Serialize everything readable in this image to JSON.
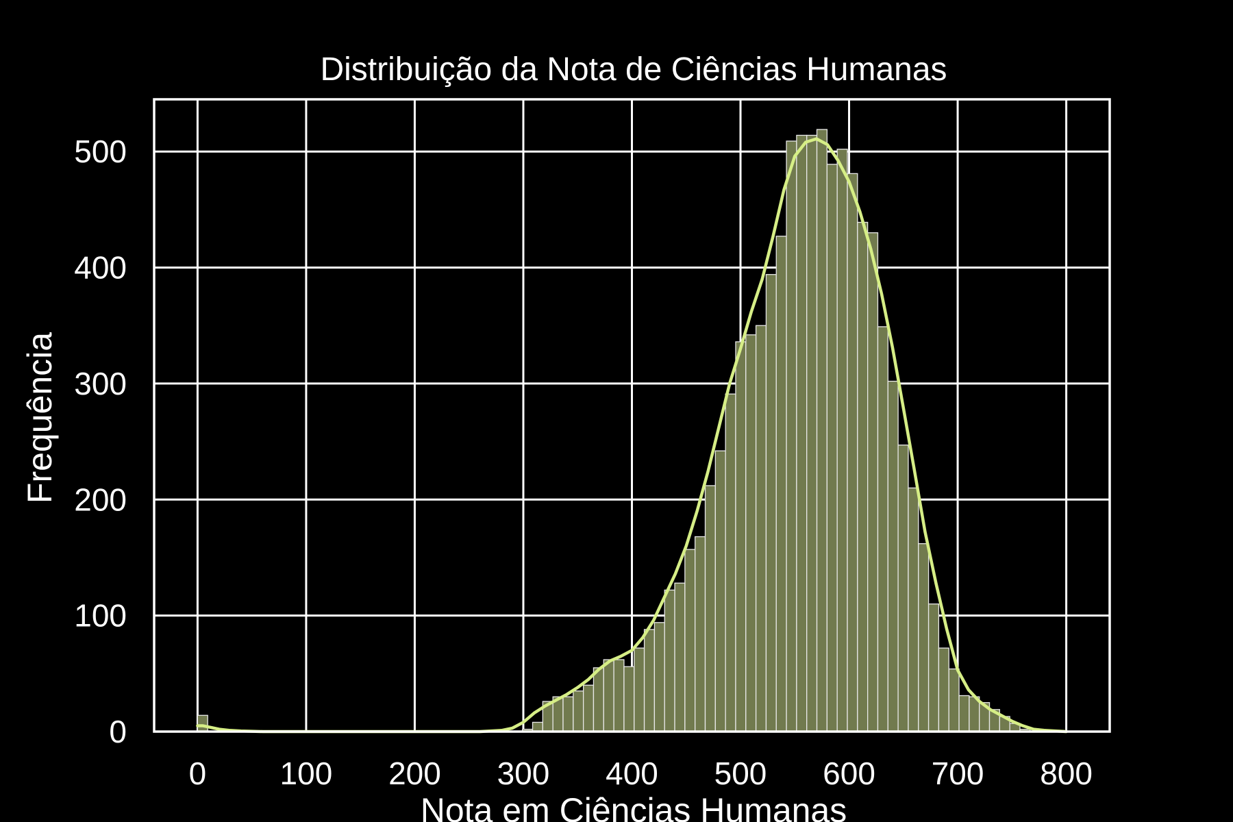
{
  "chart_data": {
    "type": "bar",
    "title": "Distribuição da Nota de Ciências Humanas",
    "xlabel": "Nota em Ciências Humanas",
    "ylabel": "Frequência",
    "xlim": [
      -40,
      840
    ],
    "ylim": [
      0,
      545
    ],
    "xticks": [
      "0",
      "100",
      "200",
      "300",
      "400",
      "500",
      "600",
      "700",
      "800"
    ],
    "yticks": [
      "0",
      "100",
      "200",
      "300",
      "400",
      "500"
    ],
    "grid": true,
    "bin_width": 9.35,
    "series": [
      {
        "bin_starts": [
          0,
          299.2,
          308.55,
          317.9,
          327.25,
          336.6,
          345.95,
          355.3,
          364.65,
          374,
          383.35,
          392.7,
          402.05,
          411.4,
          420.75,
          430.1,
          439.45,
          448.8,
          458.15,
          467.5,
          476.85,
          486.2,
          495.55,
          504.9,
          514.25,
          523.6,
          532.95,
          542.3,
          551.65,
          561,
          570.35,
          579.7,
          589.05,
          598.4,
          607.75,
          617.1,
          626.45,
          635.8,
          645.15,
          654.5,
          663.85,
          673.2,
          682.55,
          691.9,
          701.25,
          710.6,
          719.95,
          729.3,
          738.65,
          748,
          757.35
        ],
        "values": [
          14,
          2,
          8,
          26,
          30,
          30,
          35,
          40,
          55,
          62,
          62,
          56,
          72,
          88,
          94,
          122,
          128,
          157,
          168,
          212,
          242,
          291,
          336,
          342,
          350,
          394,
          427,
          509,
          514,
          514,
          519,
          489,
          502,
          481,
          439,
          430,
          349,
          302,
          247,
          210,
          162,
          110,
          72,
          54,
          31,
          30,
          25,
          19,
          13,
          7,
          2
        ]
      }
    ],
    "kde": {
      "x": [
        0,
        5,
        10,
        20,
        30,
        40,
        60,
        100,
        200,
        260,
        280,
        290,
        300,
        310,
        320,
        330,
        340,
        350,
        360,
        370,
        380,
        390,
        400,
        410,
        420,
        430,
        440,
        450,
        460,
        470,
        480,
        490,
        500,
        510,
        520,
        530,
        540,
        550,
        560,
        570,
        580,
        590,
        600,
        610,
        620,
        630,
        640,
        650,
        660,
        670,
        680,
        690,
        700,
        710,
        720,
        730,
        740,
        750,
        760,
        770,
        780,
        790,
        800
      ],
      "y": [
        5,
        5,
        4,
        2,
        1,
        0.5,
        0,
        0,
        0,
        0,
        1,
        3,
        8,
        16,
        22,
        27,
        32,
        38,
        45,
        54,
        61,
        65,
        70,
        81,
        96,
        116,
        136,
        160,
        190,
        224,
        262,
        300,
        330,
        362,
        390,
        427,
        467,
        496,
        508,
        511,
        506,
        492,
        474,
        448,
        416,
        377,
        331,
        279,
        226,
        172,
        128,
        88,
        53,
        36,
        26,
        19,
        14,
        9,
        5,
        2,
        1,
        0.5,
        0
      ]
    },
    "bar_color": "#717a4e",
    "line_color": "#d6ee86",
    "background": "#000000"
  }
}
